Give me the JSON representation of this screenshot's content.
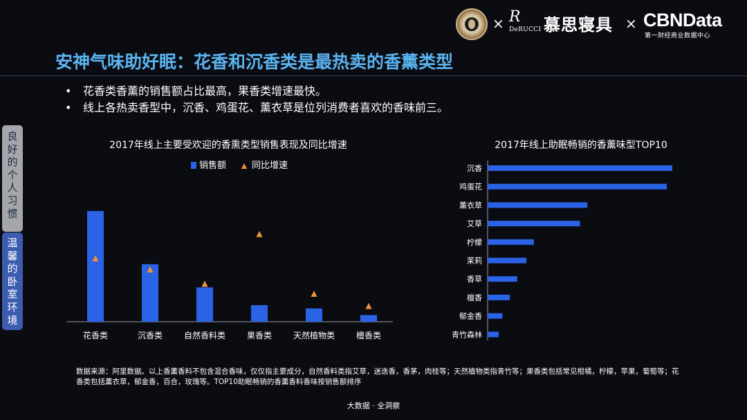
{
  "header": {
    "logo_separator": "×",
    "derucci_mark": "R",
    "derucci_text": "DeRUCCI",
    "derucci_cn": "慕思寝具",
    "cbn_text": "CBNData",
    "cbn_sub": "第一财经商业数据中心"
  },
  "title": "安神气味助好眠：花香和沉香类是最热卖的香薰类型",
  "bullets": [
    "花香类香薰的销售额占比最高，果香类增速最快。",
    "线上各热卖香型中，沉香、鸡蛋花、薰衣草是位列消费者喜欢的香味前三。"
  ],
  "bullet_symbol": "•",
  "side_tabs": [
    {
      "chars": [
        "良",
        "好",
        "的",
        "个",
        "人",
        "习",
        "惯"
      ]
    },
    {
      "chars": [
        "温",
        "馨",
        "的",
        "卧",
        "室",
        "环",
        "境"
      ]
    }
  ],
  "source_note": "数据来源：阿里数据。以上香薰香料不包含混合香味，仅仅指主要成分，自然香料类指艾草，迷迭香，香茅，肉桂等；天然植物类指青竹等；果香类包括常见柑橘，柠檬，苹果，葡萄等；花香类包括薰衣草，郁金香，百合，玫瑰等。TOP10助眠畅销的香薰香料香味按销售额排序",
  "footer": "大数据 · 全洞察",
  "colors": {
    "bar": "#2a63e6",
    "marker": "#f0913b",
    "title": "#5ab4f0"
  },
  "chart_data": [
    {
      "type": "bar",
      "title": "2017年线上主要受欢迎的香熏类型销售表现及同比增速",
      "categories": [
        "花香类",
        "沉香类",
        "自然香料类",
        "果香类",
        "天然植物类",
        "檀香类"
      ],
      "legend": {
        "placement": "top",
        "entries": [
          "销售额",
          "同比增速"
        ]
      },
      "series": [
        {
          "name": "销售额",
          "kind": "bar",
          "values": [
            100,
            52,
            31,
            15,
            12,
            6
          ]
        },
        {
          "name": "同比增速",
          "kind": "marker",
          "values": [
            57,
            47,
            34,
            79,
            25,
            14
          ]
        }
      ],
      "ylim": [
        0,
        100
      ],
      "grid": false
    },
    {
      "type": "bar",
      "orientation": "horizontal",
      "title": "2017年线上助眠畅销的香薰味型TOP10",
      "categories": [
        "沉香",
        "鸡蛋花",
        "薰衣草",
        "艾草",
        "柠檬",
        "茉莉",
        "香草",
        "檀香",
        "郁金香",
        "青竹森林"
      ],
      "values": [
        100,
        97,
        54,
        50,
        25,
        21,
        16,
        12,
        8,
        6
      ],
      "xlim": [
        0,
        100
      ],
      "grid": false
    }
  ]
}
